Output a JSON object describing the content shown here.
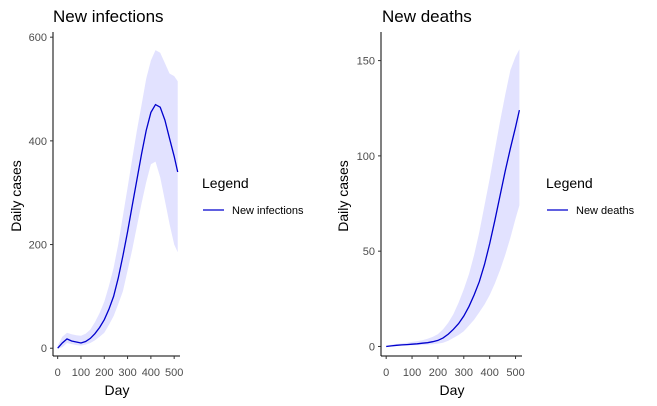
{
  "chart_data": [
    {
      "type": "line",
      "title": "New infections",
      "xlabel": "Day",
      "ylabel": "Daily cases",
      "xlim": [
        -20,
        525
      ],
      "ylim": [
        -15,
        610
      ],
      "xticks": [
        0,
        100,
        200,
        300,
        400,
        500
      ],
      "xtick_labels": [
        "0",
        "100",
        "200",
        "300",
        "400",
        "500"
      ],
      "yticks": [
        0,
        200,
        400,
        600
      ],
      "ytick_labels": [
        "0",
        "200",
        "400",
        "600"
      ],
      "grid": false,
      "legend": {
        "title": "Legend",
        "position": "right",
        "entries": [
          "New infections"
        ]
      },
      "series": [
        {
          "name": "New infections",
          "color": "#0000CD",
          "x": [
            0,
            20,
            40,
            60,
            80,
            100,
            120,
            140,
            160,
            180,
            200,
            220,
            240,
            260,
            280,
            300,
            320,
            340,
            360,
            380,
            400,
            420,
            440,
            460,
            480,
            500,
            515
          ],
          "values": [
            0,
            10,
            18,
            14,
            12,
            10,
            13,
            19,
            28,
            40,
            55,
            75,
            100,
            135,
            178,
            225,
            275,
            325,
            375,
            420,
            455,
            470,
            465,
            440,
            405,
            370,
            340
          ]
        }
      ],
      "band": {
        "color": "#E2E2FF",
        "x": [
          0,
          20,
          40,
          60,
          80,
          100,
          120,
          140,
          160,
          180,
          200,
          220,
          240,
          260,
          280,
          300,
          320,
          340,
          360,
          380,
          400,
          420,
          440,
          460,
          480,
          500,
          515
        ],
        "lower": [
          0,
          2,
          10,
          8,
          6,
          5,
          7,
          10,
          15,
          22,
          30,
          45,
          62,
          85,
          110,
          150,
          190,
          235,
          280,
          320,
          355,
          360,
          330,
          285,
          240,
          200,
          185
        ],
        "upper": [
          5,
          22,
          30,
          27,
          25,
          24,
          28,
          36,
          50,
          68,
          90,
          120,
          155,
          200,
          255,
          310,
          365,
          420,
          470,
          520,
          555,
          575,
          570,
          550,
          530,
          525,
          515
        ]
      }
    },
    {
      "type": "line",
      "title": "New deaths",
      "xlabel": "Day",
      "ylabel": "Daily cases",
      "xlim": [
        -20,
        525
      ],
      "ylim": [
        -5,
        165
      ],
      "xticks": [
        0,
        100,
        200,
        300,
        400,
        500
      ],
      "xtick_labels": [
        "0",
        "100",
        "200",
        "300",
        "400",
        "500"
      ],
      "yticks": [
        0,
        50,
        100,
        150
      ],
      "ytick_labels": [
        "0",
        "50",
        "100",
        "150"
      ],
      "grid": false,
      "legend": {
        "title": "Legend",
        "position": "right",
        "entries": [
          "New deaths"
        ]
      },
      "series": [
        {
          "name": "New deaths",
          "color": "#0000CD",
          "x": [
            0,
            20,
            40,
            60,
            80,
            100,
            120,
            140,
            160,
            180,
            200,
            220,
            240,
            260,
            280,
            300,
            320,
            340,
            360,
            380,
            400,
            420,
            440,
            460,
            480,
            500,
            515
          ],
          "values": [
            0,
            0.3,
            0.6,
            0.8,
            1,
            1.2,
            1.4,
            1.7,
            2,
            2.5,
            3.2,
            4.5,
            6.5,
            9,
            12,
            16,
            21,
            27,
            34,
            43,
            54,
            66,
            79,
            92,
            104,
            115,
            124
          ]
        }
      ],
      "band": {
        "color": "#E2E2FF",
        "x": [
          0,
          20,
          40,
          60,
          80,
          100,
          120,
          140,
          160,
          180,
          200,
          220,
          240,
          260,
          280,
          300,
          320,
          340,
          360,
          380,
          400,
          420,
          440,
          460,
          480,
          500,
          515
        ],
        "lower": [
          0,
          0,
          0.2,
          0.3,
          0.5,
          0.6,
          0.7,
          0.8,
          1,
          1.2,
          1.5,
          2,
          3,
          4.5,
          6,
          8,
          11,
          14,
          18,
          22,
          27,
          33,
          40,
          48,
          57,
          67,
          74
        ],
        "upper": [
          0.5,
          1,
          1.3,
          1.6,
          2,
          2.4,
          2.8,
          3.3,
          4,
          5,
          6.5,
          9,
          12.5,
          17,
          23,
          30,
          38,
          48,
          60,
          74,
          88,
          103,
          118,
          132,
          145,
          152,
          156
        ]
      }
    }
  ]
}
